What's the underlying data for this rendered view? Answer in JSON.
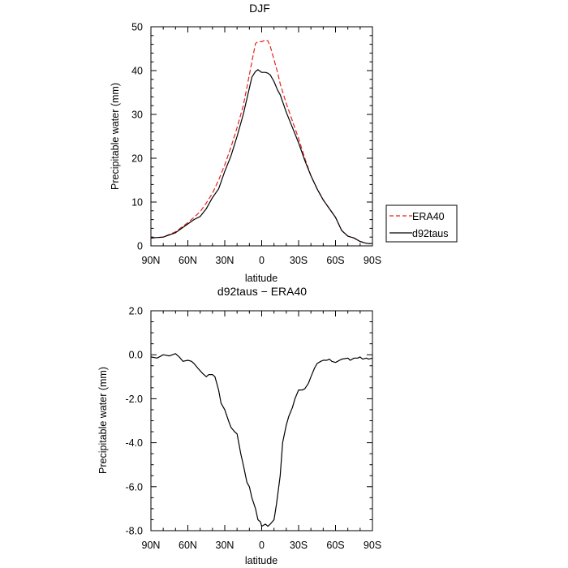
{
  "chart_data": [
    {
      "type": "line",
      "title": "DJF",
      "xlabel": "latitude",
      "ylabel": "Precipitable water (mm)",
      "xlim": [
        -90,
        90
      ],
      "ylim": [
        0,
        50
      ],
      "x_tick_values": [
        -90,
        -60,
        -30,
        0,
        30,
        60,
        90
      ],
      "x_tick_labels": [
        "90N",
        "60N",
        "30N",
        "0",
        "30S",
        "60S",
        "90S"
      ],
      "y_tick_values": [
        0,
        10,
        20,
        30,
        40,
        50
      ],
      "y_tick_labels": [
        "0",
        "10",
        "20",
        "30",
        "40",
        "50"
      ],
      "grid": false,
      "legend": {
        "placement": "right",
        "entries": [
          "ERA40",
          "d92taus"
        ]
      },
      "series": [
        {
          "name": "ERA40",
          "color": "#e8201c",
          "dash": "dashed",
          "x": [
            -90,
            -80,
            -70,
            -60,
            -55,
            -50,
            -45,
            -40,
            -35,
            -30,
            -25,
            -20,
            -15,
            -10,
            -8,
            -5,
            -3,
            0,
            3,
            5,
            7,
            10,
            13,
            15,
            20,
            25,
            30,
            35,
            40,
            45,
            50,
            55,
            60,
            65,
            70,
            75,
            80,
            85,
            88,
            90
          ],
          "y": [
            1.8,
            2.0,
            3.2,
            5.3,
            6.5,
            7.8,
            9.8,
            12.0,
            15.0,
            18.5,
            22.5,
            27.0,
            32.0,
            39.0,
            42.0,
            46.2,
            46.6,
            46.6,
            47.0,
            46.8,
            45.5,
            42.5,
            39.5,
            37.0,
            32.5,
            28.5,
            24.5,
            20.0,
            16.0,
            13.0,
            10.5,
            8.5,
            6.5,
            3.5,
            2.2,
            1.8,
            1.0,
            0.6,
            0.5,
            0.6
          ]
        },
        {
          "name": "d92taus",
          "color": "#000000",
          "dash": "solid",
          "x": [
            -90,
            -80,
            -70,
            -60,
            -55,
            -50,
            -45,
            -40,
            -35,
            -30,
            -25,
            -20,
            -15,
            -10,
            -8,
            -5,
            -3,
            0,
            3,
            5,
            7,
            10,
            13,
            15,
            20,
            25,
            30,
            35,
            40,
            45,
            50,
            55,
            60,
            65,
            70,
            75,
            80,
            85,
            88,
            90
          ],
          "y": [
            1.8,
            2.0,
            3.0,
            5.0,
            6.0,
            6.7,
            8.5,
            11.0,
            13.0,
            17.0,
            20.5,
            25.0,
            30.0,
            36.0,
            38.5,
            39.8,
            40.2,
            39.6,
            39.6,
            39.4,
            39.0,
            37.5,
            35.5,
            34.5,
            30.5,
            27.0,
            23.5,
            19.5,
            16.0,
            13.0,
            10.5,
            8.5,
            6.5,
            3.5,
            2.2,
            1.8,
            1.0,
            0.6,
            0.5,
            0.6
          ]
        }
      ]
    },
    {
      "type": "line",
      "title": "d92taus − ERA40",
      "xlabel": "latitude",
      "ylabel": "Precipitable water (mm)",
      "xlim": [
        -90,
        90
      ],
      "ylim": [
        -8,
        2
      ],
      "x_tick_values": [
        -90,
        -60,
        -30,
        0,
        30,
        60,
        90
      ],
      "x_tick_labels": [
        "90N",
        "60N",
        "30N",
        "0",
        "30S",
        "60S",
        "90S"
      ],
      "y_tick_values": [
        2,
        0,
        -2,
        -4,
        -6,
        -8
      ],
      "y_tick_labels": [
        "2.0",
        "0.0",
        "-2.0",
        "-4.0",
        "-6.0",
        "-8.0"
      ],
      "grid": false,
      "series": [
        {
          "color": "#000000",
          "dash": "solid",
          "x": [
            -90,
            -85,
            -80,
            -75,
            -70,
            -67,
            -64,
            -60,
            -57,
            -55,
            -52,
            -48,
            -45,
            -43,
            -40,
            -38,
            -35,
            -33,
            -30,
            -27,
            -25,
            -22,
            -20,
            -17,
            -15,
            -12,
            -10,
            -8,
            -5,
            -3,
            -1,
            0,
            3,
            5,
            7,
            10,
            12,
            15,
            17,
            20,
            22,
            25,
            27,
            30,
            33,
            35,
            38,
            40,
            43,
            45,
            48,
            50,
            53,
            55,
            57,
            60,
            65,
            70,
            72,
            75,
            78,
            80,
            82,
            85,
            87,
            90
          ],
          "y": [
            -0.1,
            -0.15,
            0.0,
            -0.05,
            0.05,
            -0.1,
            -0.3,
            -0.25,
            -0.3,
            -0.4,
            -0.6,
            -0.85,
            -1.0,
            -0.9,
            -0.9,
            -1.0,
            -1.6,
            -2.2,
            -2.5,
            -3.0,
            -3.3,
            -3.5,
            -3.6,
            -4.5,
            -5.0,
            -5.8,
            -6.0,
            -6.5,
            -7.0,
            -7.5,
            -7.6,
            -7.8,
            -7.7,
            -7.8,
            -7.7,
            -7.5,
            -6.8,
            -5.5,
            -4.0,
            -3.2,
            -2.8,
            -2.4,
            -2.0,
            -1.6,
            -1.6,
            -1.55,
            -1.3,
            -1.0,
            -0.6,
            -0.4,
            -0.3,
            -0.25,
            -0.25,
            -0.2,
            -0.3,
            -0.35,
            -0.2,
            -0.15,
            -0.25,
            -0.15,
            -0.15,
            -0.1,
            -0.2,
            -0.15,
            -0.2,
            -0.15
          ]
        }
      ]
    }
  ]
}
